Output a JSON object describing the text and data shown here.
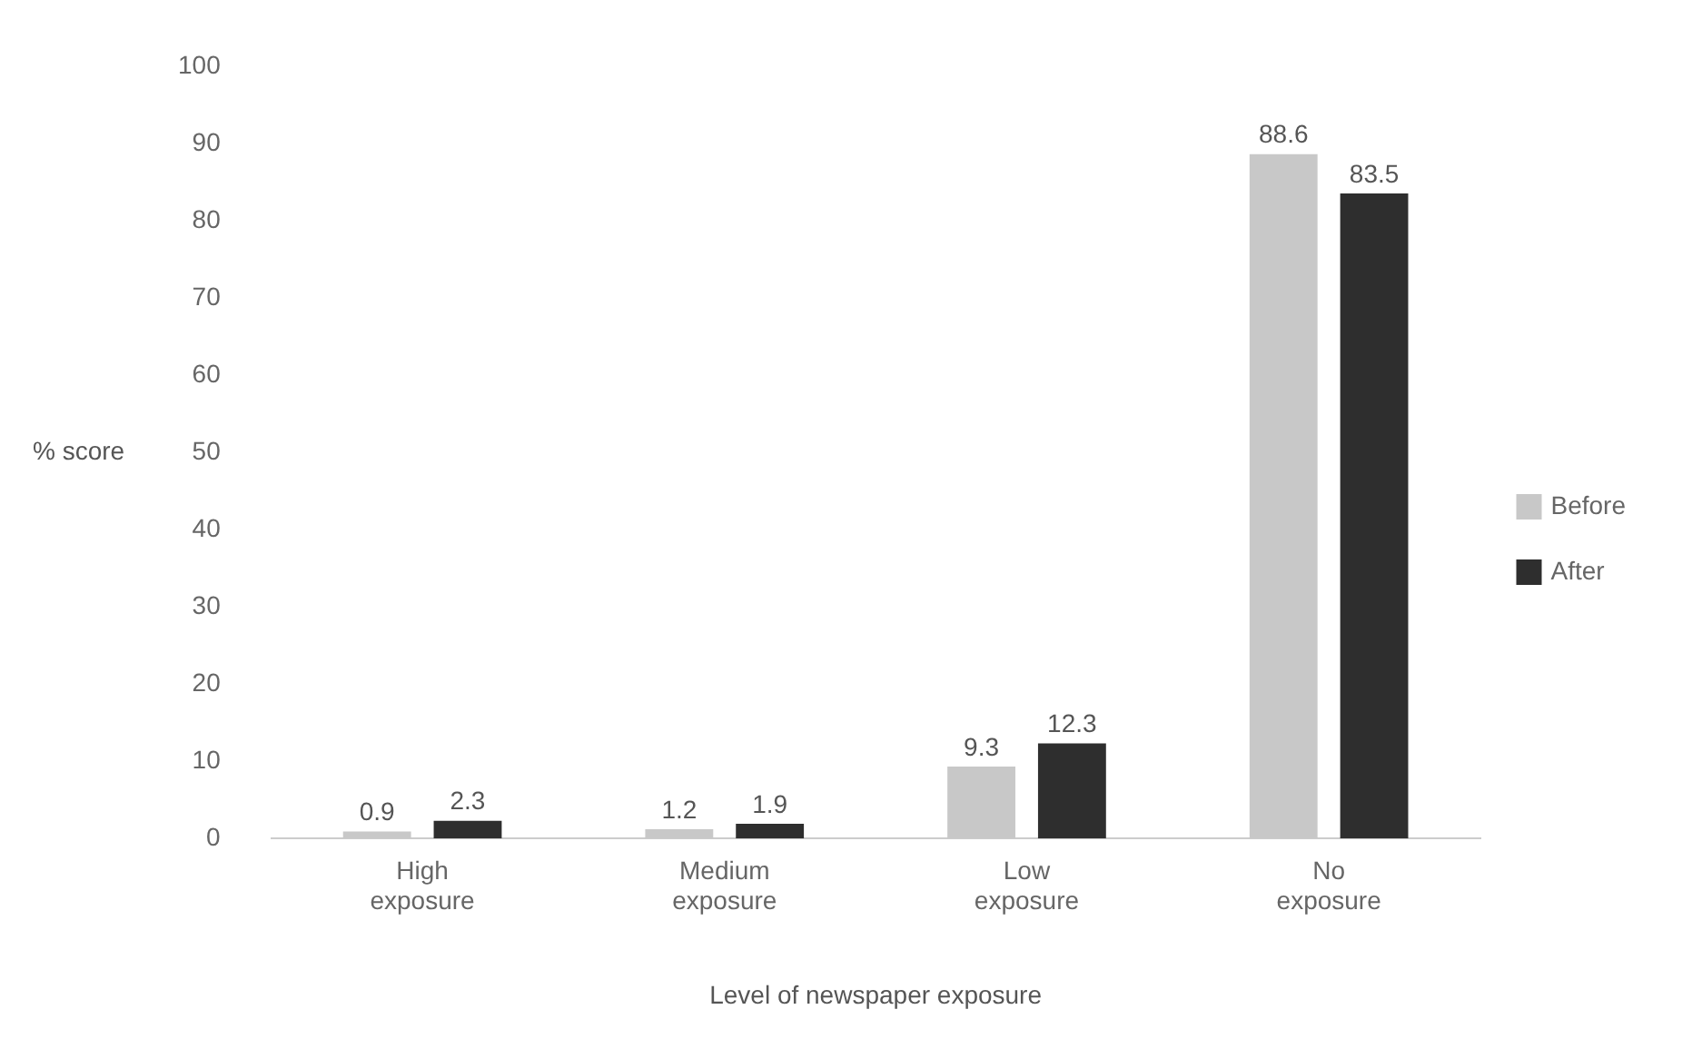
{
  "chart_data": {
    "type": "bar",
    "xlabel": "Level of newspaper exposure",
    "ylabel": "% score",
    "categories": [
      "High exposure",
      "Medium exposure",
      "Low exposure",
      "No exposure"
    ],
    "series": [
      {
        "name": "Before",
        "color": "#c8c8c8",
        "values": [
          0.9,
          1.2,
          9.3,
          88.6
        ]
      },
      {
        "name": "After",
        "color": "#2e2e2e",
        "values": [
          2.3,
          1.9,
          12.3,
          83.5
        ]
      }
    ],
    "ylim": [
      0,
      100
    ],
    "yticks": [
      0,
      10,
      20,
      30,
      40,
      50,
      60,
      70,
      80,
      90,
      100
    ],
    "grid": false,
    "legend": "right",
    "data_labels": true
  }
}
